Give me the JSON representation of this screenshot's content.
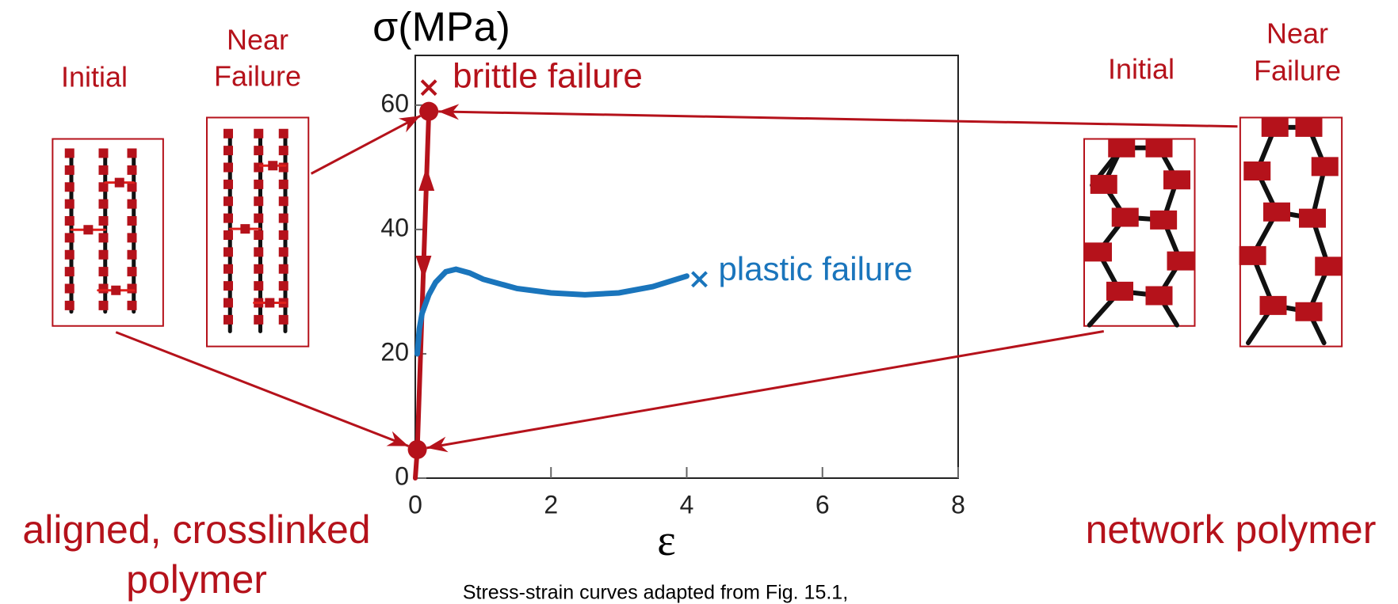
{
  "chart_data": {
    "type": "line",
    "ylabel": "σ(MPa)",
    "xlabel": "ε",
    "xlim": [
      0,
      8
    ],
    "ylim": [
      0,
      68
    ],
    "xticks": [
      0,
      2,
      4,
      6,
      8
    ],
    "yticks": [
      0,
      20,
      40,
      60
    ],
    "series": [
      {
        "name": "brittle failure",
        "color": "#b5121b",
        "x": [
          0,
          0.03,
          0.2
        ],
        "values": [
          0,
          4.6,
          59
        ]
      },
      {
        "name": "plastic failure",
        "color": "#1a75bc",
        "x": [
          0.03,
          0.06,
          0.1,
          0.2,
          0.3,
          0.45,
          0.6,
          0.8,
          1,
          1.5,
          2,
          2.5,
          3,
          3.5,
          4
        ],
        "values": [
          20,
          24,
          26.5,
          29.5,
          31.5,
          33.2,
          33.6,
          33,
          32,
          30.5,
          29.8,
          29.5,
          29.8,
          30.8,
          32.5
        ]
      }
    ],
    "caption": "Stress-strain curves adapted from Fig. 15.1,"
  },
  "labels": {
    "left_initial": "Initial",
    "left_near": [
      "Near",
      "Failure"
    ],
    "right_initial": "Initial",
    "right_near": [
      "Near",
      "Failure"
    ],
    "left_title": [
      "aligned, crosslinked",
      "polymer"
    ],
    "right_title": "network polymer"
  }
}
